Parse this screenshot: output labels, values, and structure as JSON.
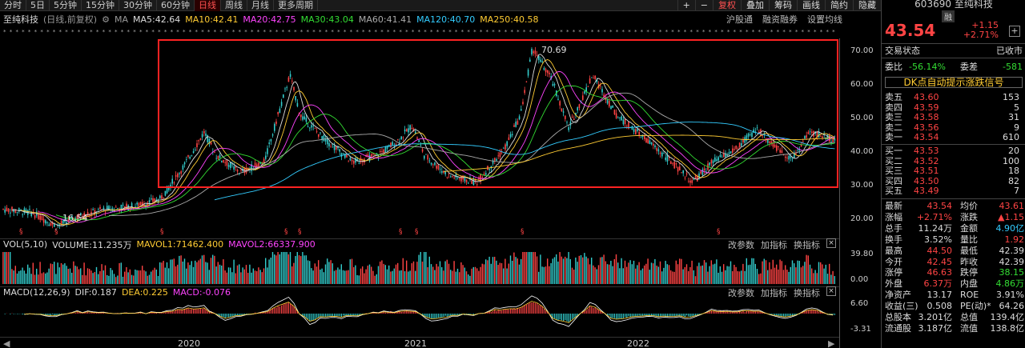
{
  "tabs": [
    "分时",
    "5日",
    "5分钟",
    "15分钟",
    "30分钟",
    "60分钟",
    "日线",
    "周线",
    "月线",
    "更多周期"
  ],
  "active_tab": "日线",
  "toolbar_right": [
    "+",
    "−",
    "复权",
    "叠加",
    "筹码",
    "画线",
    "简约",
    "隐藏"
  ],
  "stock": {
    "name": "至纯科技",
    "mode": "(日线,前复权)",
    "code": "603690",
    "badge": "融"
  },
  "ma": {
    "label": "MA",
    "ma5": "MA5:42.64",
    "ma10": "MA10:42.41",
    "ma20": "MA20:42.75",
    "ma30": "MA30:43.04",
    "ma60": "MA60:41.41",
    "ma120": "MA120:40.70",
    "ma250": "MA250:40.58",
    "links": [
      "沪股通",
      "融资融券",
      "设置均线"
    ]
  },
  "colors": {
    "up": "#ff4444",
    "down": "#33dd33",
    "ma5": "#dddddd",
    "ma10": "#ffcc33",
    "ma20": "#ff44ff",
    "ma30": "#33dd33",
    "ma60": "#aaaaaa",
    "ma120": "#33ccff",
    "ma250": "#ffcc33",
    "highlight": "#ff2222"
  },
  "price_axis": [
    "70.00",
    "60.00",
    "50.00",
    "40.00",
    "30.00",
    "20.00"
  ],
  "annotations": {
    "high": "70.69",
    "low": "16.54"
  },
  "volume": {
    "label": "VOL(5,10)",
    "volume": "VOLUME:11.235万",
    "mavol1": "MAVOL1:71462.400",
    "mavol2": "MAVOL2:66337.900",
    "axis": [
      "39.80",
      "0.00"
    ]
  },
  "macd": {
    "label": "MACD(12,26,9)",
    "dif": "DIF:0.187",
    "dea": "DEA:0.225",
    "macd": "MACD:-0.076",
    "axis": [
      "6.60",
      "-3.31"
    ]
  },
  "panel_buttons": [
    "改参数",
    "加指标",
    "换指标"
  ],
  "x_labels": [
    "2020",
    "2021",
    "2022"
  ],
  "quote": {
    "price": "43.54",
    "change": "+1.15",
    "pct": "+2.71%"
  },
  "trade_status": {
    "label": "交易状态",
    "value": "已收市"
  },
  "weibi": {
    "label": "委比",
    "value": "-56.14%",
    "label2": "委差",
    "value2": "-581"
  },
  "dk_signal": "DK点自动提示涨跌信号",
  "asks": [
    {
      "label": "卖五",
      "price": "43.60",
      "vol": "153"
    },
    {
      "label": "卖四",
      "price": "43.59",
      "vol": "5"
    },
    {
      "label": "卖三",
      "price": "43.58",
      "vol": "31"
    },
    {
      "label": "卖二",
      "price": "43.56",
      "vol": "9"
    },
    {
      "label": "卖一",
      "price": "43.54",
      "vol": "610"
    }
  ],
  "bids": [
    {
      "label": "买一",
      "price": "43.53",
      "vol": "20"
    },
    {
      "label": "买二",
      "price": "43.52",
      "vol": "100"
    },
    {
      "label": "买三",
      "price": "43.51",
      "vol": "18"
    },
    {
      "label": "买四",
      "price": "43.50",
      "vol": "82"
    },
    {
      "label": "买五",
      "price": "43.49",
      "vol": "7"
    }
  ],
  "stats": [
    {
      "l1": "最新",
      "v1": "43.54",
      "l2": "均价",
      "v2": "43.61"
    },
    {
      "l1": "涨幅",
      "v1": "+2.71%",
      "l2": "涨跌",
      "v2": "▲1.15"
    },
    {
      "l1": "总手",
      "v1": "11.24万",
      "l2": "金额",
      "v2": "4.90亿"
    },
    {
      "l1": "换手",
      "v1": "3.52%",
      "l2": "量比",
      "v2": "1.92"
    },
    {
      "l1": "最高",
      "v1": "44.50",
      "l2": "最低",
      "v2": "42.39"
    },
    {
      "l1": "今开",
      "v1": "42.45",
      "l2": "昨收",
      "v2": "42.39"
    },
    {
      "l1": "涨停",
      "v1": "46.63",
      "l2": "跌停",
      "v2": "38.15"
    },
    {
      "l1": "外盘",
      "v1": "6.37万",
      "l2": "内盘",
      "v2": "4.86万"
    },
    {
      "l1": "净资产",
      "v1": "13.17",
      "l2": "ROE",
      "v2": "3.91%"
    },
    {
      "l1": "收益(三)",
      "v1": "0.508",
      "l2": "PE(动)*",
      "v2": "64.26"
    },
    {
      "l1": "总股本",
      "v1": "3.201亿",
      "l2": "总值",
      "v2": "139.4亿"
    },
    {
      "l1": "流通股",
      "v1": "3.187亿",
      "l2": "流值",
      "v2": "138.8亿"
    }
  ]
}
